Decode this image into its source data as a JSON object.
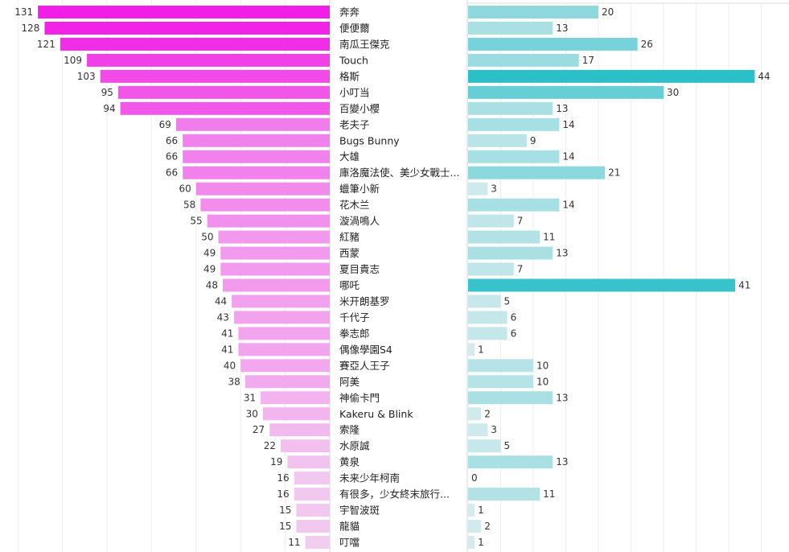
{
  "chart_data": {
    "type": "bar",
    "categories": [
      "奔奔",
      "便便薾",
      "南瓜王傑克",
      "Touch",
      "格斯",
      "小叮当",
      "百變小櫻",
      "老夫子",
      "Bugs Bunny",
      "大雄",
      "庫洛魔法使、美少女戰士...",
      "蠟筆小新",
      "花木兰",
      "漩渦鳴人",
      "紅豬",
      "西蒙",
      "夏目貴志",
      "哪吒",
      "米开朗基罗",
      "千代子",
      "拳志郎",
      "偶像學園S4",
      "賽亞人王子",
      "阿美",
      "神偷卡門",
      "Kakeru & Blink",
      "索隆",
      "水原誠",
      "黄泉",
      "未来少年柯南",
      "有很多，少女終末旅行...",
      "宇智波斑",
      "龍貓",
      "叮噹"
    ],
    "series": [
      {
        "values": [
          131,
          128,
          121,
          109,
          103,
          95,
          94,
          69,
          66,
          66,
          66,
          60,
          58,
          55,
          50,
          49,
          49,
          48,
          44,
          43,
          41,
          41,
          40,
          38,
          31,
          30,
          27,
          22,
          19,
          16,
          16,
          15,
          15,
          11
        ]
      },
      {
        "values": [
          20,
          13,
          26,
          17,
          44,
          30,
          13,
          14,
          9,
          14,
          21,
          3,
          14,
          7,
          11,
          13,
          7,
          41,
          5,
          6,
          6,
          1,
          10,
          10,
          13,
          2,
          3,
          5,
          13,
          0,
          11,
          1,
          2,
          1
        ]
      }
    ],
    "colors": {
      "left_strong": "#f01ee6",
      "left_light": "#f3eaf2",
      "right_strong": "#2bbfc8",
      "right_light": "#e2eff1"
    },
    "grid": true
  }
}
